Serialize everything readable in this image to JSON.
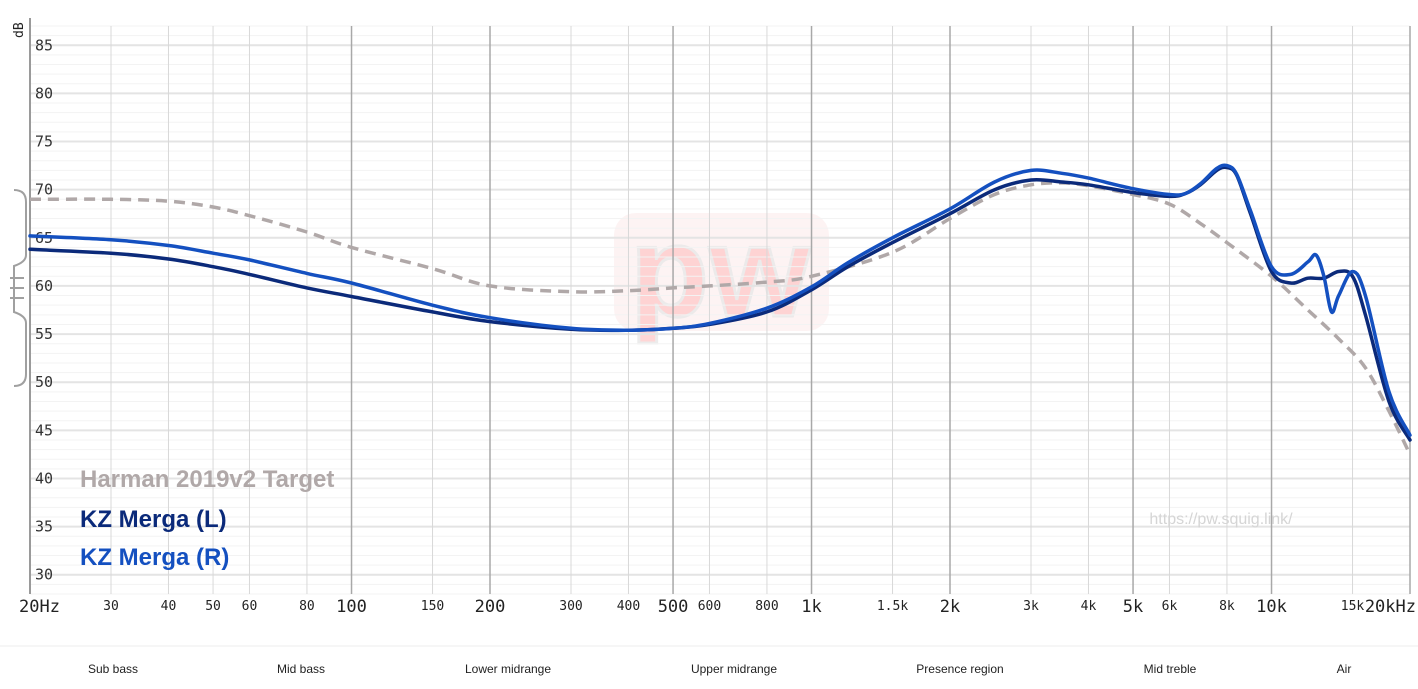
{
  "chart_data": {
    "type": "line",
    "x_scale": "log",
    "xlim": [
      20,
      20000
    ],
    "ylim": [
      28,
      87
    ],
    "ylabel": "dB",
    "y_ticks": [
      30,
      35,
      40,
      45,
      50,
      55,
      60,
      65,
      70,
      75,
      80,
      85
    ],
    "x_ticks_major": [
      {
        "value": 20,
        "label": "20Hz"
      },
      {
        "value": 100,
        "label": "100"
      },
      {
        "value": 200,
        "label": "200"
      },
      {
        "value": 500,
        "label": "500"
      },
      {
        "value": 1000,
        "label": "1k"
      },
      {
        "value": 2000,
        "label": "2k"
      },
      {
        "value": 5000,
        "label": "5k"
      },
      {
        "value": 10000,
        "label": "10k"
      },
      {
        "value": 20000,
        "label": "20kHz"
      }
    ],
    "x_ticks_minor": [
      {
        "value": 30,
        "label": "30"
      },
      {
        "value": 40,
        "label": "40"
      },
      {
        "value": 50,
        "label": "50"
      },
      {
        "value": 60,
        "label": "60"
      },
      {
        "value": 80,
        "label": "80"
      },
      {
        "value": 150,
        "label": "150"
      },
      {
        "value": 300,
        "label": "300"
      },
      {
        "value": 400,
        "label": "400"
      },
      {
        "value": 600,
        "label": "600"
      },
      {
        "value": 800,
        "label": "800"
      },
      {
        "value": 1500,
        "label": "1.5k"
      },
      {
        "value": 3000,
        "label": "3k"
      },
      {
        "value": 4000,
        "label": "4k"
      },
      {
        "value": 6000,
        "label": "6k"
      },
      {
        "value": 8000,
        "label": "8k"
      },
      {
        "value": 15000,
        "label": "15k"
      }
    ],
    "grid": true,
    "legend_position": "bottom-left",
    "series": [
      {
        "name": "Harman 2019v2 Target",
        "color": "#b0a8a8",
        "dashed": true,
        "points": [
          [
            20,
            69
          ],
          [
            30,
            69
          ],
          [
            40,
            68.8
          ],
          [
            50,
            68.2
          ],
          [
            60,
            67.3
          ],
          [
            80,
            65.6
          ],
          [
            100,
            64
          ],
          [
            150,
            61.8
          ],
          [
            200,
            60
          ],
          [
            300,
            59.4
          ],
          [
            400,
            59.5
          ],
          [
            500,
            59.8
          ],
          [
            600,
            60
          ],
          [
            800,
            60.4
          ],
          [
            1000,
            61
          ],
          [
            1500,
            63.5
          ],
          [
            2000,
            67
          ],
          [
            2500,
            69.5
          ],
          [
            3000,
            70.5
          ],
          [
            3500,
            70.7
          ],
          [
            4000,
            70.4
          ],
          [
            5000,
            69.5
          ],
          [
            6000,
            68.5
          ],
          [
            7000,
            66.5
          ],
          [
            8000,
            64.5
          ],
          [
            10000,
            61
          ],
          [
            12000,
            57.5
          ],
          [
            14000,
            54.5
          ],
          [
            16000,
            51.5
          ],
          [
            18000,
            47
          ],
          [
            20000,
            42.5
          ]
        ]
      },
      {
        "name": "KZ Merga (L)",
        "color": "#0b2a7a",
        "dashed": false,
        "points": [
          [
            20,
            63.8
          ],
          [
            30,
            63.4
          ],
          [
            40,
            62.8
          ],
          [
            50,
            62
          ],
          [
            60,
            61.2
          ],
          [
            80,
            59.8
          ],
          [
            100,
            58.9
          ],
          [
            150,
            57.3
          ],
          [
            200,
            56.3
          ],
          [
            300,
            55.5
          ],
          [
            400,
            55.4
          ],
          [
            500,
            55.6
          ],
          [
            600,
            56
          ],
          [
            800,
            57.3
          ],
          [
            1000,
            59.6
          ],
          [
            1200,
            62
          ],
          [
            1500,
            64.5
          ],
          [
            2000,
            67.5
          ],
          [
            2500,
            70
          ],
          [
            3000,
            71
          ],
          [
            3500,
            70.8
          ],
          [
            4000,
            70.5
          ],
          [
            5000,
            69.7
          ],
          [
            6000,
            69.3
          ],
          [
            6500,
            69.6
          ],
          [
            7000,
            70.5
          ],
          [
            7600,
            72
          ],
          [
            8000,
            72.3
          ],
          [
            8400,
            71.5
          ],
          [
            9000,
            67.5
          ],
          [
            10000,
            61.5
          ],
          [
            11000,
            60.3
          ],
          [
            12000,
            60.8
          ],
          [
            13000,
            60.8
          ],
          [
            14000,
            61.5
          ],
          [
            15000,
            61
          ],
          [
            16000,
            57
          ],
          [
            18000,
            48
          ],
          [
            20000,
            44
          ]
        ]
      },
      {
        "name": "KZ Merga (R)",
        "color": "#1450c0",
        "dashed": false,
        "points": [
          [
            20,
            65.2
          ],
          [
            30,
            64.8
          ],
          [
            40,
            64.2
          ],
          [
            50,
            63.4
          ],
          [
            60,
            62.7
          ],
          [
            80,
            61.3
          ],
          [
            100,
            60.3
          ],
          [
            150,
            58
          ],
          [
            200,
            56.7
          ],
          [
            300,
            55.6
          ],
          [
            400,
            55.4
          ],
          [
            500,
            55.6
          ],
          [
            600,
            56.1
          ],
          [
            800,
            57.7
          ],
          [
            1000,
            59.9
          ],
          [
            1200,
            62.4
          ],
          [
            1500,
            65
          ],
          [
            2000,
            68
          ],
          [
            2500,
            70.8
          ],
          [
            3000,
            72
          ],
          [
            3500,
            71.7
          ],
          [
            4000,
            71.2
          ],
          [
            5000,
            70.1
          ],
          [
            6000,
            69.5
          ],
          [
            6500,
            69.6
          ],
          [
            7000,
            70.6
          ],
          [
            7600,
            72.2
          ],
          [
            8000,
            72.5
          ],
          [
            8400,
            71.6
          ],
          [
            9000,
            67.8
          ],
          [
            10000,
            62
          ],
          [
            11000,
            61.2
          ],
          [
            12000,
            62.5
          ],
          [
            12500,
            63.2
          ],
          [
            13000,
            61
          ],
          [
            13500,
            57.3
          ],
          [
            14000,
            59
          ],
          [
            15000,
            61.5
          ],
          [
            16000,
            59
          ],
          [
            18000,
            49
          ],
          [
            20000,
            44.5
          ]
        ]
      }
    ],
    "bands": [
      {
        "label": "Sub bass",
        "x": 20
      },
      {
        "label": "Mid bass",
        "x": 60
      },
      {
        "label": "Lower midrange",
        "x": 200
      },
      {
        "label": "Upper midrange",
        "x": 500
      },
      {
        "label": "Presence region",
        "x": 2000
      },
      {
        "label": "Mid treble",
        "x": 5000
      },
      {
        "label": "Air",
        "x": 10000
      }
    ],
    "watermark_url": "https://pw.squig.link/",
    "logo_text": "pw"
  }
}
